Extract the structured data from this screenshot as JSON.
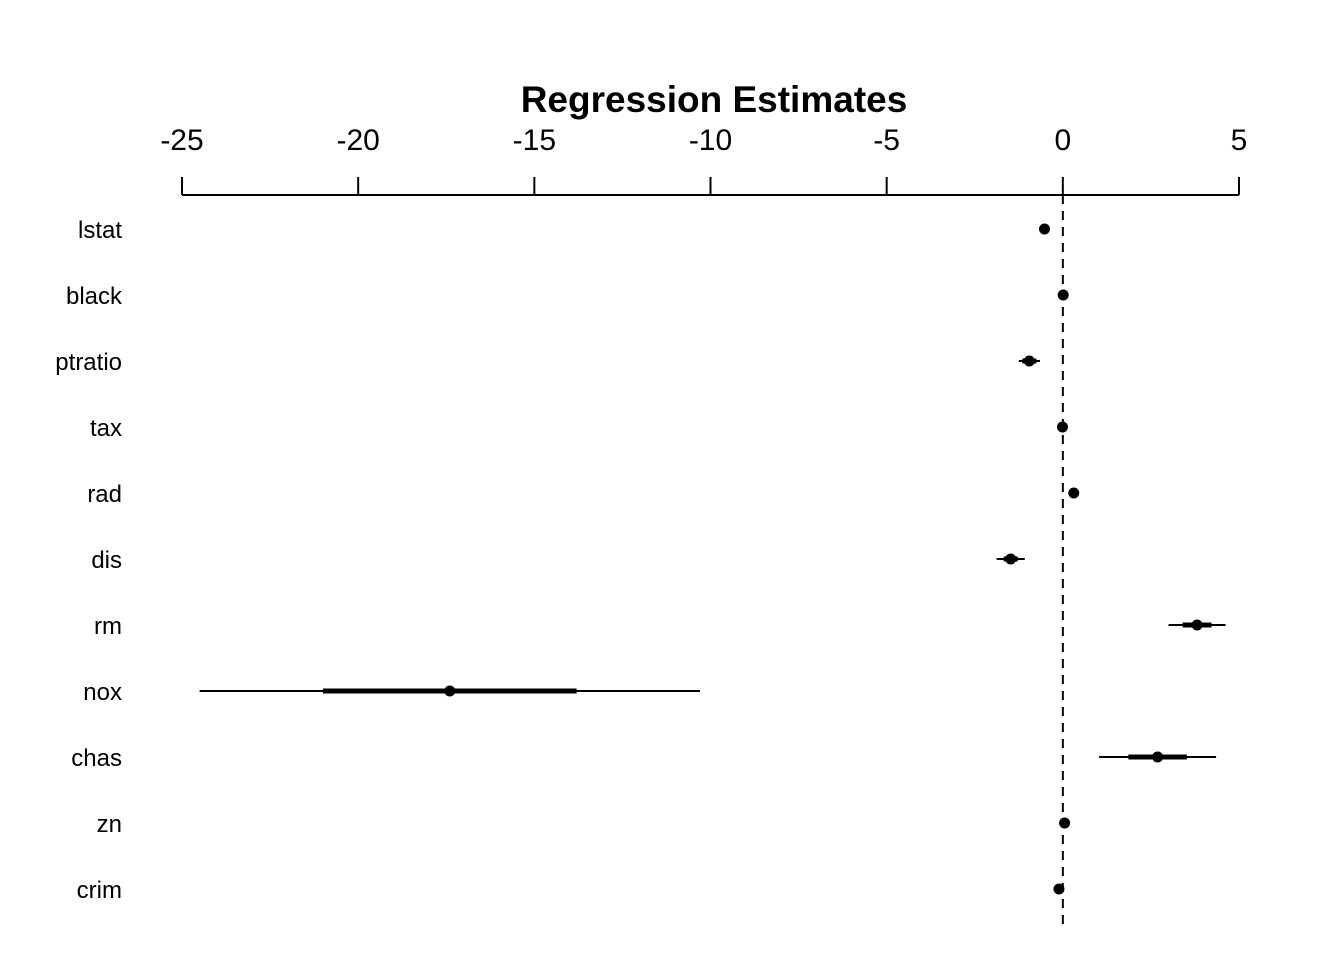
{
  "chart_data": {
    "type": "coefficient-plot",
    "title": "Regression Estimates",
    "xlim": [
      -25,
      5
    ],
    "x_ticks": [
      -25,
      -20,
      -15,
      -10,
      -5,
      0,
      5
    ],
    "x_tick_labels": [
      "-25",
      "-20",
      "-15",
      "-10",
      "-5",
      "0",
      "5"
    ],
    "x_axis_position": "top",
    "reference_line": 0,
    "grid": false,
    "coefficients": [
      {
        "name": "lstat",
        "estimate": -0.52,
        "inner": [
          -0.6,
          -0.44
        ],
        "outer": [
          -0.62,
          -0.42
        ]
      },
      {
        "name": "black",
        "estimate": 0.01,
        "inner": [
          0.0,
          0.02
        ],
        "outer": [
          0.0,
          0.02
        ]
      },
      {
        "name": "ptratio",
        "estimate": -0.95,
        "inner": [
          -1.15,
          -0.75
        ],
        "outer": [
          -1.25,
          -0.65
        ]
      },
      {
        "name": "tax",
        "estimate": -0.01,
        "inner": [
          -0.02,
          0.0
        ],
        "outer": [
          -0.02,
          0.0
        ]
      },
      {
        "name": "rad",
        "estimate": 0.31,
        "inner": [
          0.24,
          0.38
        ],
        "outer": [
          0.2,
          0.42
        ]
      },
      {
        "name": "dis",
        "estimate": -1.48,
        "inner": [
          -1.68,
          -1.28
        ],
        "outer": [
          -1.88,
          -1.08
        ]
      },
      {
        "name": "rm",
        "estimate": 3.81,
        "inner": [
          3.4,
          4.22
        ],
        "outer": [
          3.0,
          4.62
        ]
      },
      {
        "name": "nox",
        "estimate": -17.4,
        "inner": [
          -21.0,
          -13.8
        ],
        "outer": [
          -24.5,
          -10.3
        ]
      },
      {
        "name": "chas",
        "estimate": 2.69,
        "inner": [
          1.86,
          3.52
        ],
        "outer": [
          1.03,
          4.35
        ]
      },
      {
        "name": "zn",
        "estimate": 0.05,
        "inner": [
          0.02,
          0.08
        ],
        "outer": [
          0.0,
          0.1
        ]
      },
      {
        "name": "crim",
        "estimate": -0.11,
        "inner": [
          -0.17,
          -0.05
        ],
        "outer": [
          -0.2,
          -0.02
        ]
      }
    ],
    "colors": {
      "ink": "#000000",
      "background": "#ffffff"
    }
  }
}
